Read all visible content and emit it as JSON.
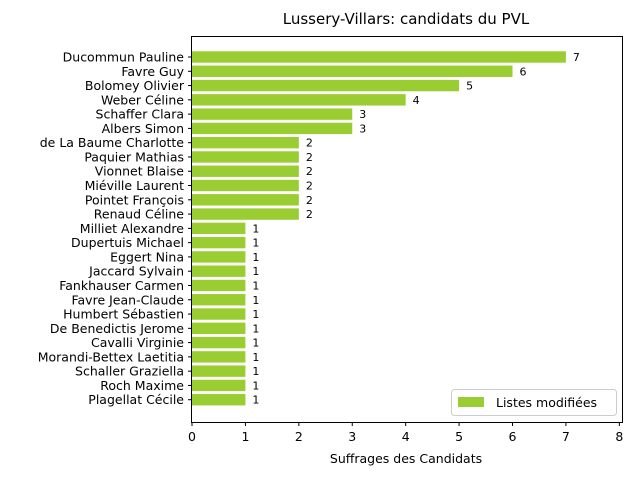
{
  "chart_data": {
    "type": "bar",
    "orientation": "horizontal",
    "title": "Lussery-Villars: candidats du PVL",
    "xlabel": "Suffrages des Candidats",
    "ylabel": "",
    "xlim": [
      0,
      8.05
    ],
    "xticks": [
      0,
      1,
      2,
      3,
      4,
      5,
      6,
      7,
      8
    ],
    "grid": false,
    "legend_position": "bottom-right",
    "bar_color": "#9acd32",
    "categories": [
      "Ducommun Pauline",
      "Favre Guy",
      "Bolomey Olivier",
      "Weber Céline",
      "Schaffer Clara",
      "Albers Simon",
      "de La Baume Charlotte",
      "Paquier Mathias",
      "Vionnet Blaise",
      "Miéville Laurent",
      "Pointet François",
      "Renaud Céline",
      "Milliet Alexandre",
      "Dupertuis Michael",
      "Eggert Nina",
      "Jaccard Sylvain",
      "Fankhauser Carmen",
      "Favre Jean-Claude",
      "Humbert Sébastien",
      "De Benedictis Jerome",
      "Cavalli Virginie",
      "Morandi-Bettex Laetitia",
      "Schaller Graziella",
      "Roch Maxime",
      "Plagellat Cécile"
    ],
    "series": [
      {
        "name": "Listes modifiées",
        "values": [
          7,
          6,
          5,
          4,
          3,
          3,
          2,
          2,
          2,
          2,
          2,
          2,
          1,
          1,
          1,
          1,
          1,
          1,
          1,
          1,
          1,
          1,
          1,
          1,
          1
        ]
      }
    ]
  }
}
